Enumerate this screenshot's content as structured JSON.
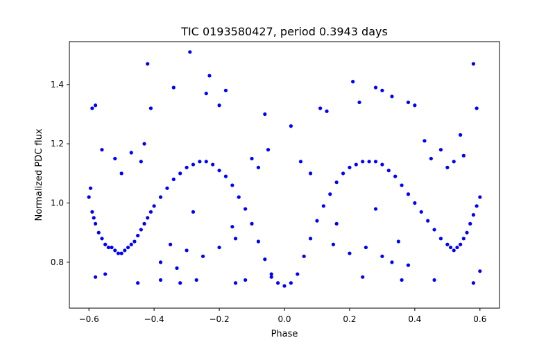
{
  "chart_data": {
    "type": "scatter",
    "title": "TIC 0193580427, period 0.3943 days",
    "xlabel": "Phase",
    "ylabel": "Normalized PDC flux",
    "xlim": [
      -0.66,
      0.66
    ],
    "ylim": [
      0.645,
      1.545
    ],
    "xticks": [
      -0.6,
      -0.4,
      -0.2,
      0.0,
      0.2,
      0.4,
      0.6
    ],
    "xtick_labels": [
      "−0.6",
      "−0.4",
      "−0.2",
      "0.0",
      "0.2",
      "0.4",
      "0.6"
    ],
    "yticks": [
      0.8,
      1.0,
      1.2,
      1.4
    ],
    "ytick_labels": [
      "0.8",
      "1.0",
      "1.2",
      "1.4"
    ],
    "grid": false,
    "marker_color": "#0000ff",
    "series": [
      {
        "points": [
          [
            -0.6,
            1.02
          ],
          [
            -0.595,
            1.05
          ],
          [
            -0.59,
            0.97
          ],
          [
            -0.585,
            0.95
          ],
          [
            -0.58,
            0.93
          ],
          [
            -0.57,
            0.9
          ],
          [
            -0.56,
            0.88
          ],
          [
            -0.55,
            0.86
          ],
          [
            -0.54,
            0.85
          ],
          [
            -0.53,
            0.85
          ],
          [
            -0.52,
            0.84
          ],
          [
            -0.51,
            0.83
          ],
          [
            -0.5,
            0.83
          ],
          [
            -0.49,
            0.84
          ],
          [
            -0.48,
            0.85
          ],
          [
            -0.47,
            0.86
          ],
          [
            -0.46,
            0.87
          ],
          [
            -0.45,
            0.89
          ],
          [
            -0.44,
            0.91
          ],
          [
            -0.43,
            0.93
          ],
          [
            -0.42,
            0.95
          ],
          [
            -0.41,
            0.97
          ],
          [
            -0.4,
            0.99
          ],
          [
            -0.38,
            1.02
          ],
          [
            -0.36,
            1.05
          ],
          [
            -0.34,
            1.08
          ],
          [
            -0.32,
            1.1
          ],
          [
            -0.3,
            1.12
          ],
          [
            -0.28,
            1.13
          ],
          [
            -0.26,
            1.14
          ],
          [
            -0.24,
            1.14
          ],
          [
            -0.22,
            1.13
          ],
          [
            -0.2,
            1.11
          ],
          [
            -0.18,
            1.09
          ],
          [
            -0.16,
            1.06
          ],
          [
            -0.14,
            1.02
          ],
          [
            -0.12,
            0.98
          ],
          [
            -0.1,
            0.93
          ],
          [
            -0.08,
            0.87
          ],
          [
            -0.06,
            0.81
          ],
          [
            -0.04,
            0.76
          ],
          [
            -0.02,
            0.73
          ],
          [
            0.0,
            0.72
          ],
          [
            0.02,
            0.73
          ],
          [
            0.04,
            0.76
          ],
          [
            0.06,
            0.82
          ],
          [
            0.08,
            0.88
          ],
          [
            0.1,
            0.94
          ],
          [
            0.12,
            0.99
          ],
          [
            0.14,
            1.03
          ],
          [
            0.16,
            1.07
          ],
          [
            0.18,
            1.1
          ],
          [
            0.2,
            1.12
          ],
          [
            0.22,
            1.13
          ],
          [
            0.24,
            1.14
          ],
          [
            0.26,
            1.14
          ],
          [
            0.28,
            1.14
          ],
          [
            0.3,
            1.13
          ],
          [
            0.32,
            1.11
          ],
          [
            0.34,
            1.09
          ],
          [
            0.36,
            1.06
          ],
          [
            0.38,
            1.03
          ],
          [
            0.4,
            1.0
          ],
          [
            0.42,
            0.97
          ],
          [
            0.44,
            0.94
          ],
          [
            0.46,
            0.91
          ],
          [
            0.48,
            0.88
          ],
          [
            0.5,
            0.86
          ],
          [
            0.51,
            0.85
          ],
          [
            0.52,
            0.84
          ],
          [
            0.53,
            0.85
          ],
          [
            0.54,
            0.86
          ],
          [
            0.55,
            0.88
          ],
          [
            0.56,
            0.9
          ],
          [
            0.57,
            0.93
          ],
          [
            0.58,
            0.96
          ],
          [
            0.59,
            0.99
          ],
          [
            0.6,
            1.02
          ],
          [
            -0.59,
            1.32
          ],
          [
            -0.58,
            1.33
          ],
          [
            -0.58,
            0.75
          ],
          [
            -0.55,
            0.76
          ],
          [
            -0.42,
            1.47
          ],
          [
            -0.41,
            1.32
          ],
          [
            -0.45,
            0.73
          ],
          [
            -0.38,
            0.74
          ],
          [
            -0.34,
            1.39
          ],
          [
            -0.32,
            0.73
          ],
          [
            -0.29,
            1.51
          ],
          [
            -0.27,
            0.74
          ],
          [
            -0.23,
            1.43
          ],
          [
            -0.24,
            1.37
          ],
          [
            -0.18,
            1.38
          ],
          [
            -0.2,
            1.33
          ],
          [
            -0.15,
            0.73
          ],
          [
            -0.12,
            0.74
          ],
          [
            -0.06,
            1.3
          ],
          [
            -0.04,
            0.75
          ],
          [
            0.02,
            1.26
          ],
          [
            0.11,
            1.32
          ],
          [
            0.13,
            1.31
          ],
          [
            0.21,
            1.41
          ],
          [
            0.23,
            1.34
          ],
          [
            0.28,
            1.39
          ],
          [
            0.3,
            1.38
          ],
          [
            0.33,
            1.36
          ],
          [
            0.38,
            1.34
          ],
          [
            0.4,
            1.33
          ],
          [
            0.36,
            0.74
          ],
          [
            0.24,
            0.75
          ],
          [
            0.46,
            0.74
          ],
          [
            0.54,
            1.23
          ],
          [
            0.58,
            1.47
          ],
          [
            0.59,
            1.32
          ],
          [
            0.58,
            0.73
          ],
          [
            0.6,
            0.77
          ],
          [
            -0.56,
            1.18
          ],
          [
            -0.52,
            1.15
          ],
          [
            -0.47,
            1.17
          ],
          [
            -0.44,
            1.14
          ],
          [
            -0.5,
            1.1
          ],
          [
            -0.35,
            0.86
          ],
          [
            -0.3,
            0.84
          ],
          [
            -0.25,
            0.82
          ],
          [
            -0.2,
            0.85
          ],
          [
            -0.15,
            0.88
          ],
          [
            -0.1,
            1.15
          ],
          [
            -0.08,
            1.12
          ],
          [
            -0.05,
            1.18
          ],
          [
            0.05,
            1.14
          ],
          [
            0.08,
            1.1
          ],
          [
            0.15,
            0.86
          ],
          [
            0.2,
            0.83
          ],
          [
            0.25,
            0.85
          ],
          [
            0.3,
            0.82
          ],
          [
            0.35,
            0.87
          ],
          [
            0.45,
            1.15
          ],
          [
            0.48,
            1.18
          ],
          [
            0.52,
            1.14
          ],
          [
            0.55,
            1.16
          ],
          [
            0.5,
            1.12
          ],
          [
            -0.38,
            0.8
          ],
          [
            -0.33,
            0.78
          ],
          [
            0.33,
            0.8
          ],
          [
            0.38,
            0.79
          ],
          [
            -0.16,
            0.92
          ],
          [
            0.16,
            0.93
          ],
          [
            -0.28,
            0.97
          ],
          [
            0.28,
            0.98
          ],
          [
            -0.43,
            1.2
          ],
          [
            0.43,
            1.21
          ]
        ]
      }
    ]
  }
}
